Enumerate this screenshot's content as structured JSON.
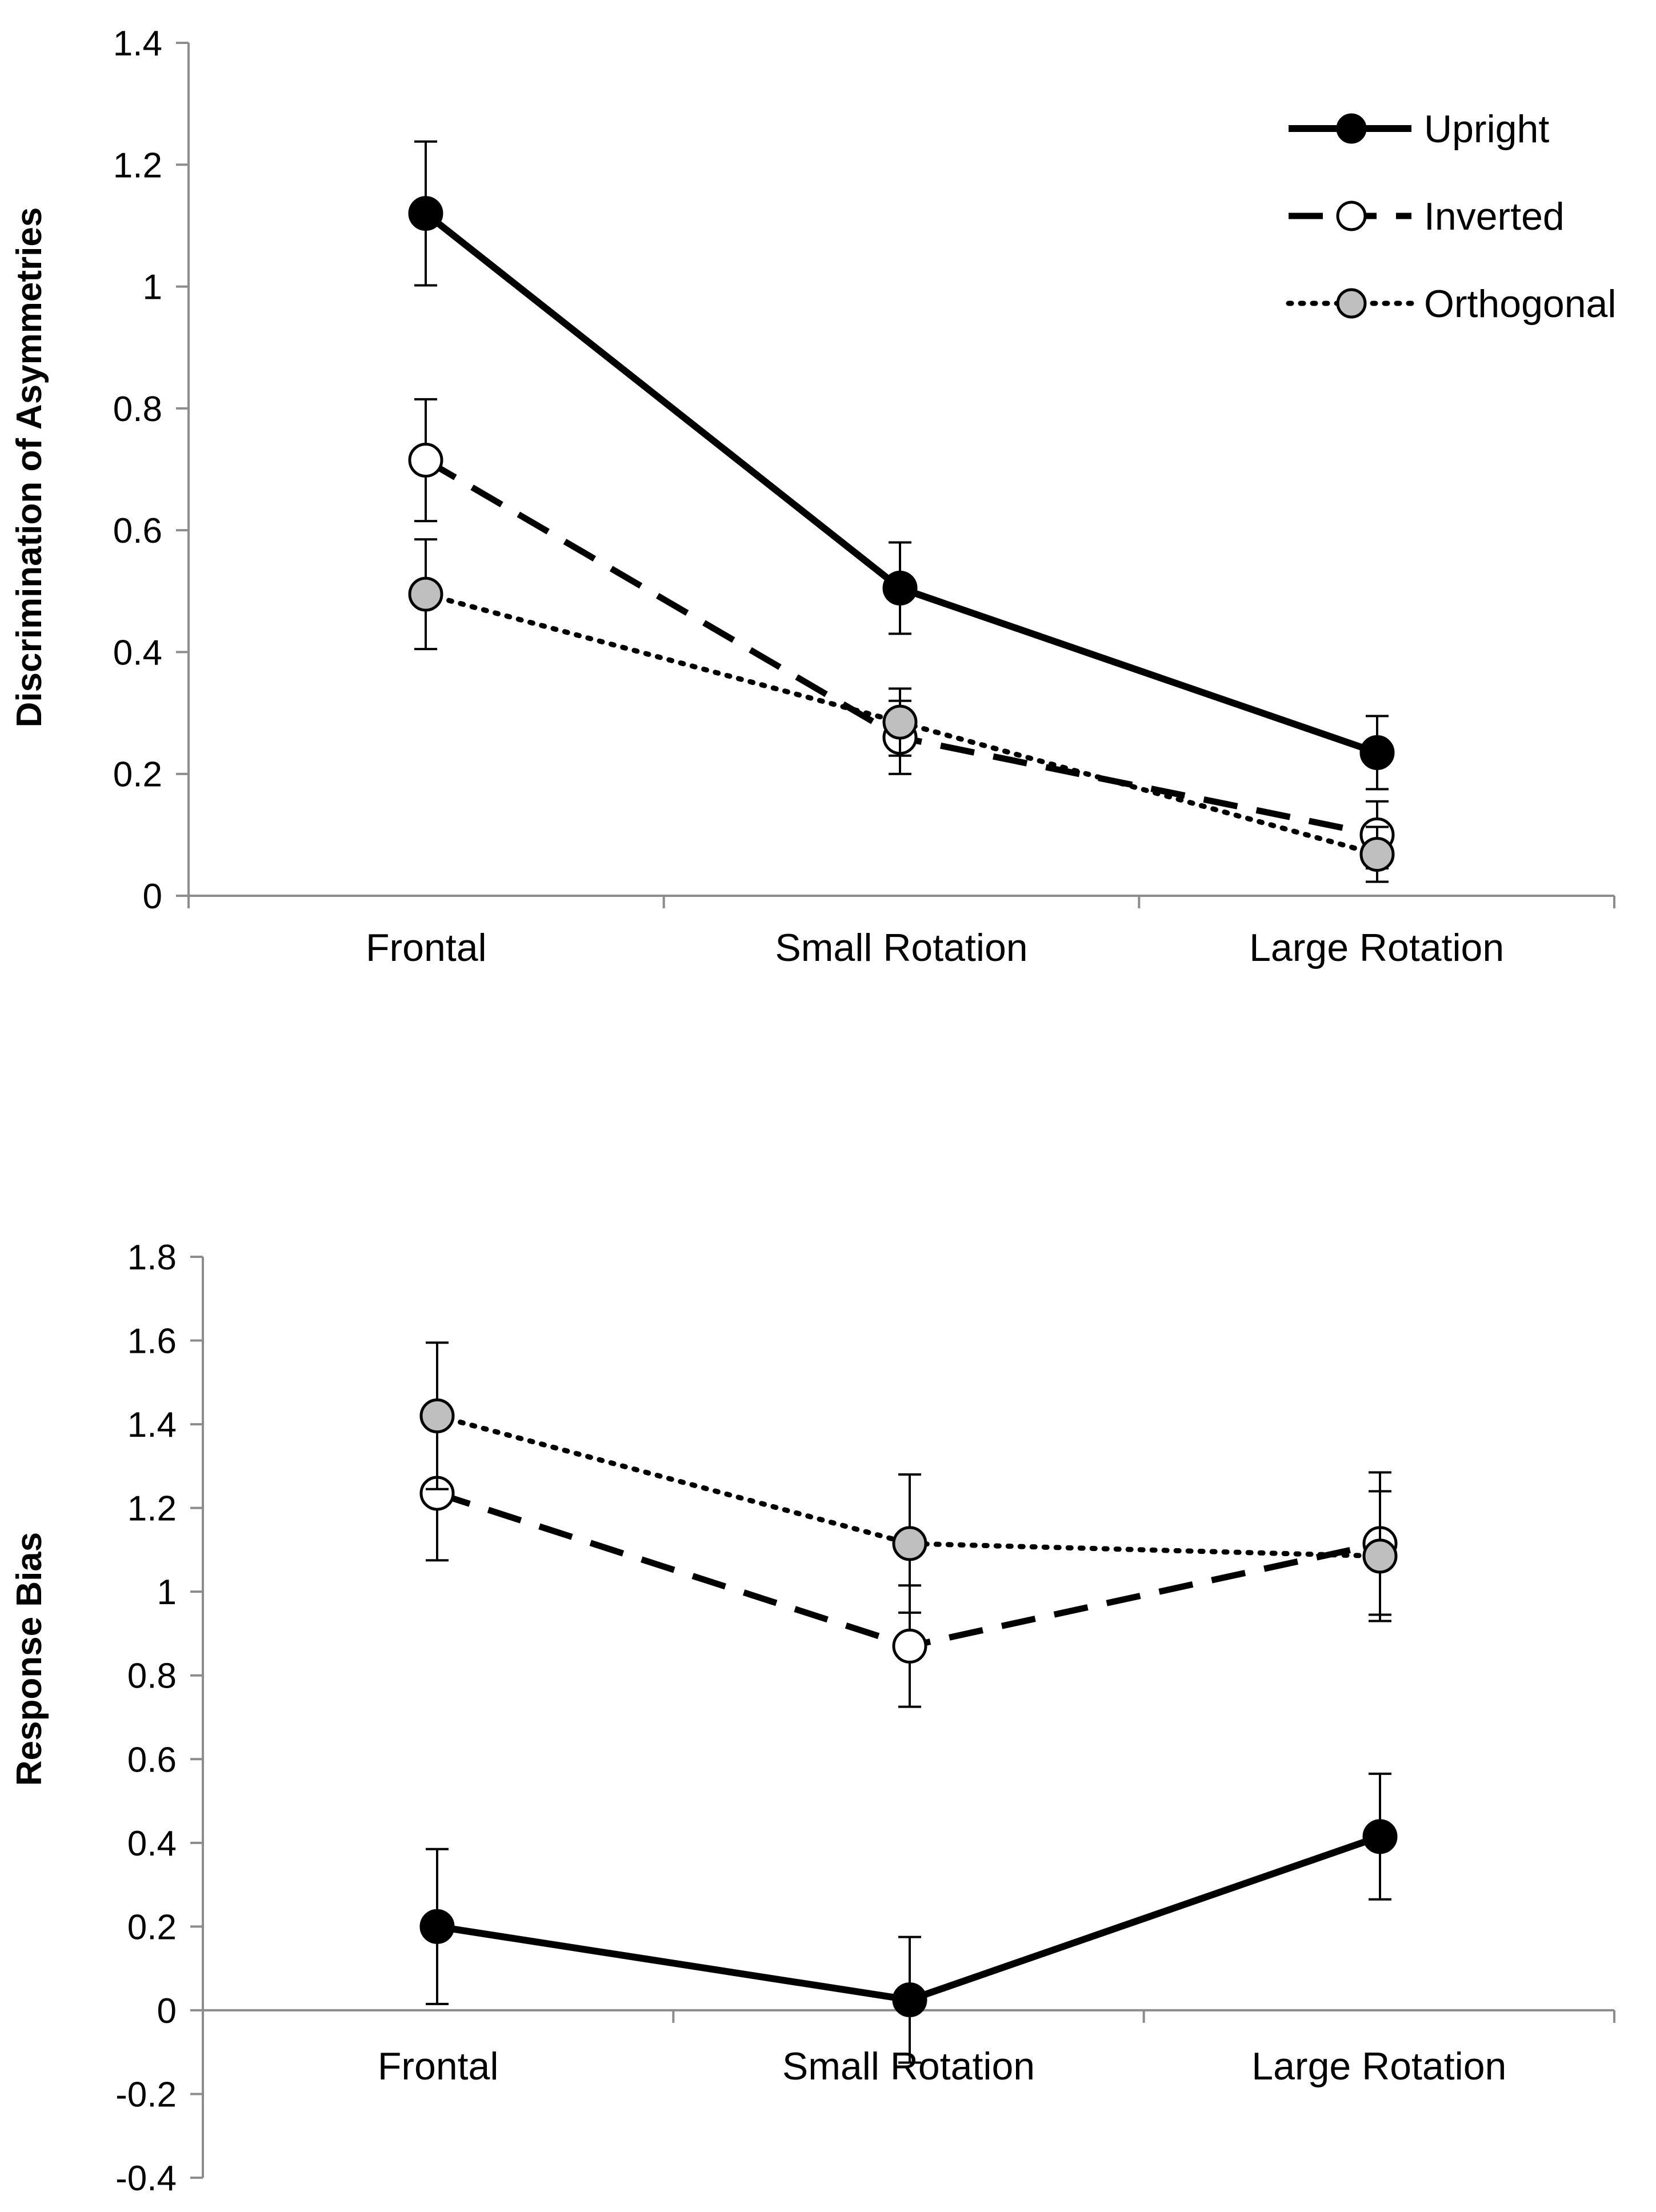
{
  "chart_data": [
    {
      "type": "line",
      "title": "",
      "xlabel": "",
      "ylabel": "Discrimination of Asymmetries",
      "ylim": [
        0,
        1.4
      ],
      "yticks": [
        "0",
        "0.2",
        "0.4",
        "0.6",
        "0.8",
        "1",
        "1.2",
        "1.4"
      ],
      "categories": [
        "Frontal",
        "Small Rotation",
        "Large Rotation"
      ],
      "legend": {
        "position": "top-right",
        "entries": [
          "Upright",
          "Inverted",
          "Orthogonal"
        ]
      },
      "series": [
        {
          "name": "Upright",
          "values": [
            1.12,
            0.505,
            0.235
          ],
          "errors": [
            0.118,
            0.075,
            0.06
          ],
          "line_style": "solid",
          "marker_fill": "#000000"
        },
        {
          "name": "Inverted",
          "values": [
            0.715,
            0.26,
            0.1
          ],
          "errors": [
            0.1,
            0.06,
            0.055
          ],
          "line_style": "dashed",
          "marker_fill": "#ffffff"
        },
        {
          "name": "Orthogonal",
          "values": [
            0.495,
            0.285,
            0.068
          ],
          "errors": [
            0.09,
            0.055,
            0.045
          ],
          "line_style": "dotted",
          "marker_fill": "#bfbfbf"
        }
      ]
    },
    {
      "type": "line",
      "title": "",
      "xlabel": "",
      "ylabel": "Response Bias",
      "ylim": [
        -0.4,
        1.8
      ],
      "yticks": [
        "-0.4",
        "-0.2",
        "0",
        "0.2",
        "0.4",
        "0.6",
        "0.8",
        "1",
        "1.2",
        "1.4",
        "1.6",
        "1.8"
      ],
      "categories": [
        "Frontal",
        "Small Rotation",
        "Large Rotation"
      ],
      "legend": null,
      "series": [
        {
          "name": "Upright",
          "values": [
            0.2,
            0.025,
            0.415
          ],
          "errors": [
            0.185,
            0.15,
            0.15
          ],
          "line_style": "solid",
          "marker_fill": "#000000"
        },
        {
          "name": "Inverted",
          "values": [
            1.235,
            0.87,
            1.115
          ],
          "errors": [
            0.16,
            0.145,
            0.17
          ],
          "line_style": "dashed",
          "marker_fill": "#ffffff"
        },
        {
          "name": "Orthogonal",
          "values": [
            1.42,
            1.115,
            1.085
          ],
          "errors": [
            0.175,
            0.165,
            0.155
          ],
          "line_style": "dotted",
          "marker_fill": "#bfbfbf"
        }
      ]
    }
  ]
}
